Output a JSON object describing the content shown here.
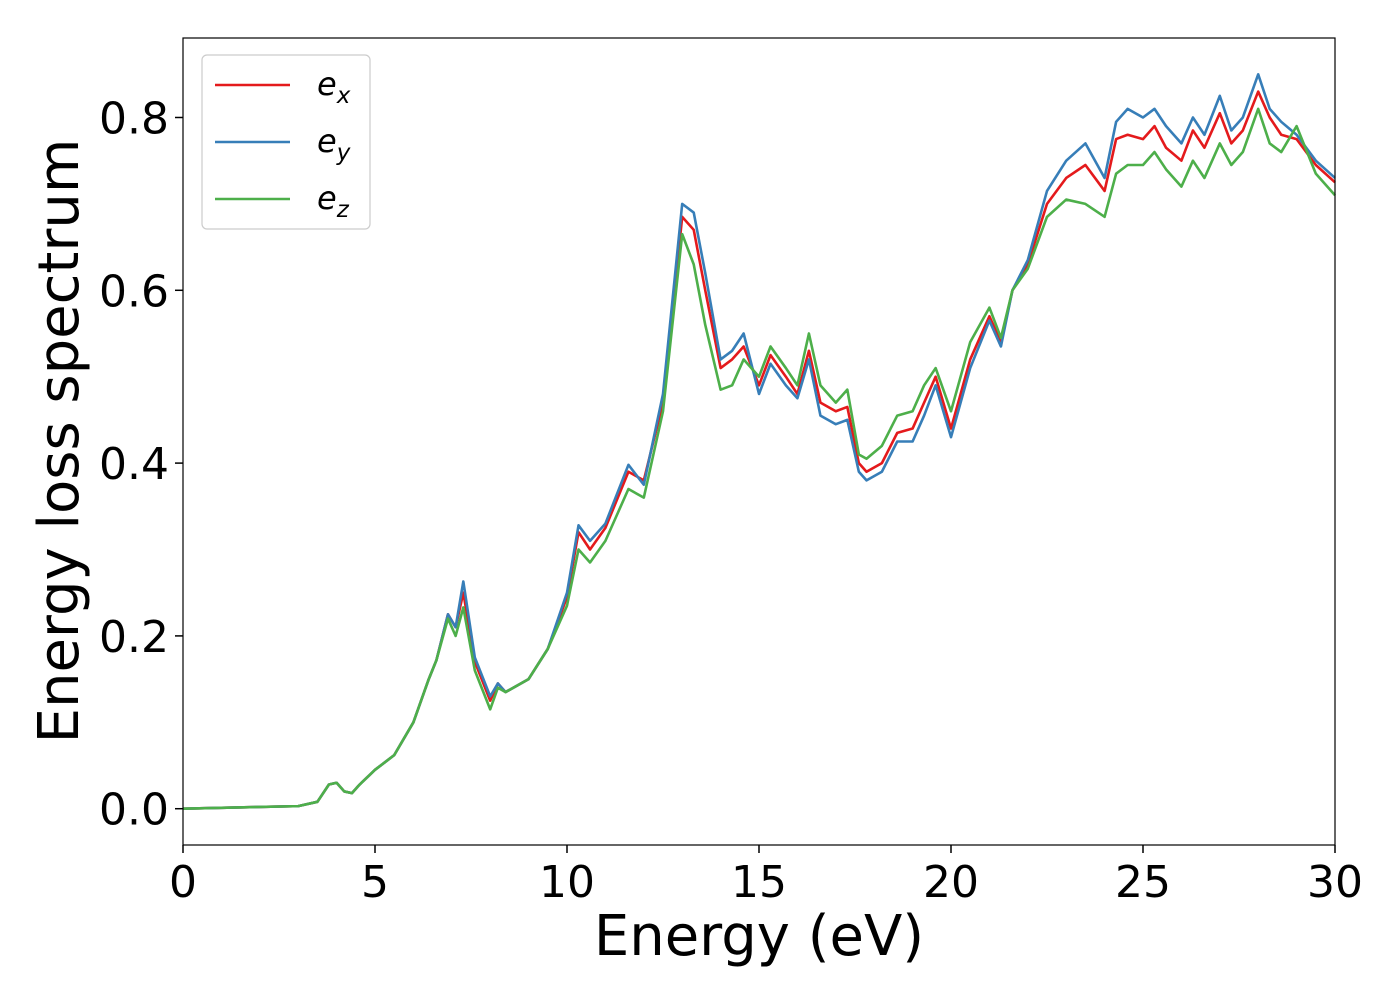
{
  "chart_data": {
    "type": "line",
    "xlabel": "Energy (eV)",
    "ylabel": "Energy loss spectrum",
    "x": [
      0,
      1,
      2,
      3,
      3.5,
      3.8,
      4,
      4.2,
      4.4,
      4.6,
      5,
      5.5,
      6,
      6.4,
      6.6,
      6.9,
      7.1,
      7.3,
      7.6,
      8,
      8.2,
      8.4,
      9,
      9.5,
      10,
      10.3,
      10.6,
      11,
      11.6,
      12,
      12.5,
      13,
      13.3,
      13.6,
      14,
      14.3,
      14.6,
      15,
      15.3,
      15.7,
      16,
      16.3,
      16.6,
      17,
      17.3,
      17.6,
      17.8,
      18.2,
      18.6,
      19,
      19.3,
      19.6,
      20,
      20.5,
      21,
      21.3,
      21.6,
      22,
      22.5,
      23,
      23.5,
      24,
      24.3,
      24.6,
      25,
      25.3,
      25.6,
      26,
      26.3,
      26.6,
      27,
      27.3,
      27.6,
      28,
      28.3,
      28.6,
      29,
      29.5,
      30
    ],
    "series": [
      {
        "name": "ex",
        "color": "#e41a1c",
        "values": [
          0,
          0.001,
          0.002,
          0.003,
          0.008,
          0.028,
          0.03,
          0.02,
          0.018,
          0.028,
          0.045,
          0.062,
          0.1,
          0.15,
          0.172,
          0.225,
          0.21,
          0.25,
          0.17,
          0.125,
          0.145,
          0.135,
          0.15,
          0.185,
          0.245,
          0.32,
          0.3,
          0.325,
          0.39,
          0.38,
          0.47,
          0.685,
          0.67,
          0.6,
          0.51,
          0.52,
          0.535,
          0.49,
          0.525,
          0.5,
          0.48,
          0.53,
          0.47,
          0.46,
          0.465,
          0.4,
          0.39,
          0.4,
          0.435,
          0.44,
          0.47,
          0.5,
          0.44,
          0.52,
          0.57,
          0.54,
          0.6,
          0.63,
          0.7,
          0.73,
          0.745,
          0.715,
          0.775,
          0.78,
          0.775,
          0.79,
          0.765,
          0.75,
          0.785,
          0.765,
          0.805,
          0.77,
          0.785,
          0.83,
          0.8,
          0.78,
          0.775,
          0.745,
          0.725
        ]
      },
      {
        "name": "ey",
        "color": "#377eb8",
        "values": [
          0,
          0.001,
          0.002,
          0.003,
          0.008,
          0.028,
          0.03,
          0.02,
          0.018,
          0.028,
          0.045,
          0.062,
          0.1,
          0.15,
          0.172,
          0.225,
          0.21,
          0.263,
          0.175,
          0.13,
          0.145,
          0.135,
          0.15,
          0.185,
          0.25,
          0.328,
          0.31,
          0.33,
          0.398,
          0.375,
          0.48,
          0.7,
          0.69,
          0.62,
          0.52,
          0.53,
          0.55,
          0.48,
          0.515,
          0.49,
          0.475,
          0.52,
          0.455,
          0.445,
          0.45,
          0.39,
          0.38,
          0.39,
          0.425,
          0.425,
          0.455,
          0.49,
          0.43,
          0.51,
          0.565,
          0.535,
          0.6,
          0.635,
          0.715,
          0.75,
          0.77,
          0.73,
          0.795,
          0.81,
          0.8,
          0.81,
          0.79,
          0.77,
          0.8,
          0.78,
          0.825,
          0.785,
          0.8,
          0.85,
          0.81,
          0.795,
          0.78,
          0.75,
          0.73
        ]
      },
      {
        "name": "ez",
        "color": "#4daf4a",
        "values": [
          0,
          0.001,
          0.002,
          0.003,
          0.008,
          0.028,
          0.03,
          0.02,
          0.018,
          0.028,
          0.045,
          0.062,
          0.1,
          0.15,
          0.172,
          0.22,
          0.2,
          0.233,
          0.16,
          0.115,
          0.14,
          0.135,
          0.15,
          0.185,
          0.235,
          0.3,
          0.285,
          0.31,
          0.37,
          0.36,
          0.46,
          0.665,
          0.63,
          0.56,
          0.485,
          0.49,
          0.52,
          0.5,
          0.535,
          0.51,
          0.49,
          0.55,
          0.49,
          0.47,
          0.485,
          0.41,
          0.405,
          0.42,
          0.455,
          0.46,
          0.49,
          0.51,
          0.46,
          0.54,
          0.58,
          0.545,
          0.6,
          0.625,
          0.685,
          0.705,
          0.7,
          0.685,
          0.735,
          0.745,
          0.745,
          0.76,
          0.74,
          0.72,
          0.75,
          0.73,
          0.77,
          0.745,
          0.76,
          0.81,
          0.77,
          0.76,
          0.79,
          0.735,
          0.71
        ]
      }
    ],
    "xlim": [
      0,
      30
    ],
    "xticks": [
      0,
      5,
      10,
      15,
      20,
      25,
      30
    ],
    "ylim": [
      -0.042,
      0.892
    ],
    "yticks": [
      {
        "value": 0,
        "label": "0.0"
      },
      0.2,
      0.4,
      0.6,
      0.8
    ],
    "legend": "upper left",
    "grid": false
  }
}
